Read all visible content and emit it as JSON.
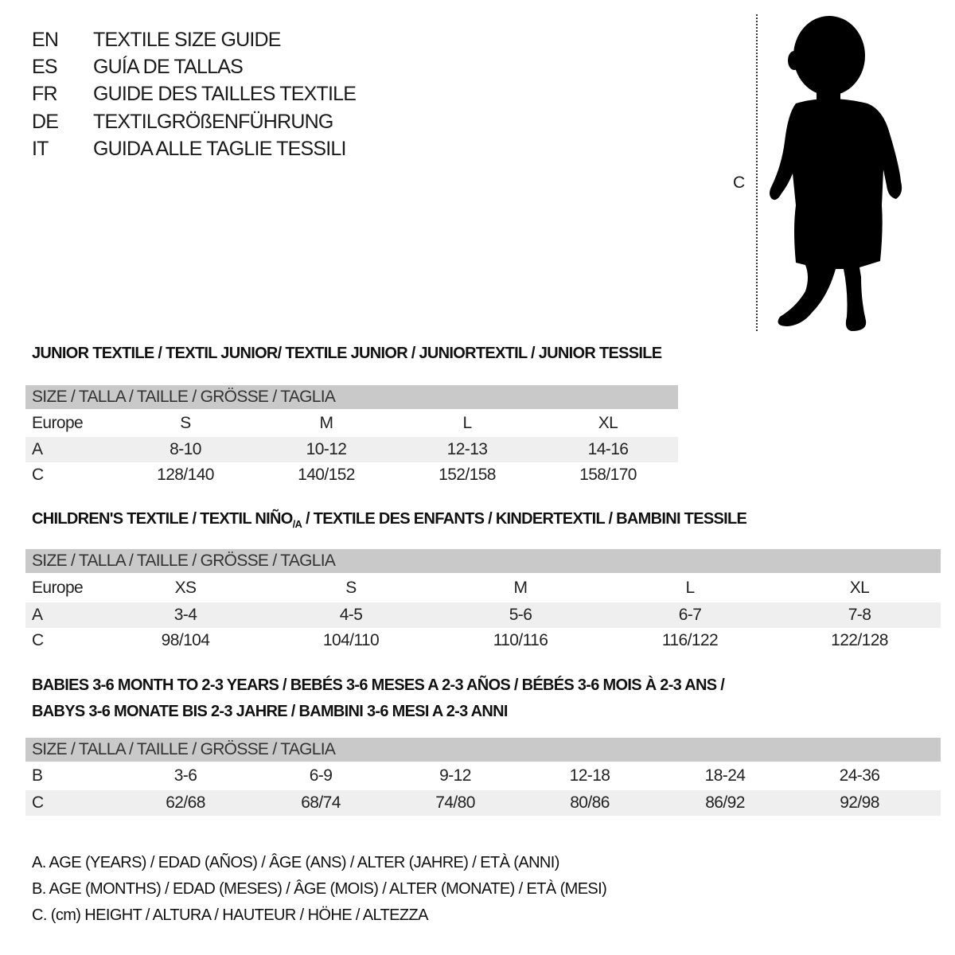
{
  "languages": [
    {
      "code": "EN",
      "text": "TEXTILE SIZE GUIDE"
    },
    {
      "code": "ES",
      "text": "GUÍA DE TALLAS"
    },
    {
      "code": "FR",
      "text": "GUIDE DES TAILLES TEXTILE"
    },
    {
      "code": "DE",
      "text": "TEXTILGRÖßENFÜHRUNG"
    },
    {
      "code": "IT",
      "text": "GUIDA ALLE TAGLIE TESSILI"
    }
  ],
  "figure": {
    "height_label": "C",
    "icon": "child-silhouette"
  },
  "size_header": "SIZE / TALLA / TAILLE / GRÖSSE / TAGLIA",
  "junior": {
    "title": "JUNIOR TEXTILE / TEXTIL JUNIOR/ TEXTILE JUNIOR / JUNIORTEXTIL / JUNIOR TESSILE",
    "rows": [
      {
        "label": "Europe",
        "values": [
          "S",
          "M",
          "L",
          "XL"
        ]
      },
      {
        "label": "A",
        "values": [
          "8-10",
          "10-12",
          "12-13",
          "14-16"
        ]
      },
      {
        "label": "C",
        "values": [
          "128/140",
          "140/152",
          "152/158",
          "158/170"
        ]
      }
    ]
  },
  "children": {
    "title_a": "CHILDREN'S TEXTILE / TEXTIL NIÑO",
    "title_sub": "/A",
    "title_b": " / TEXTILE DES ENFANTS / KINDERTEXTIL / BAMBINI TESSILE",
    "rows": [
      {
        "label": "Europe",
        "values": [
          "XS",
          "S",
          "M",
          "L",
          "XL"
        ]
      },
      {
        "label": "A",
        "values": [
          "3-4",
          "4-5",
          "5-6",
          "6-7",
          "7-8"
        ]
      },
      {
        "label": "C",
        "values": [
          "98/104",
          "104/110",
          "110/116",
          "116/122",
          "122/128"
        ]
      }
    ]
  },
  "babies": {
    "title_line1": "BABIES 3-6 MONTH TO 2-3 YEARS / BEBÉS 3-6 MESES A 2-3 AÑOS / BÉBÉS 3-6 MOIS À 2-3 ANS /",
    "title_line2": "BABYS 3-6 MONATE BIS 2-3 JAHRE / BAMBINI 3-6 MESI A 2-3 ANNI",
    "rows": [
      {
        "label": "B",
        "values": [
          "3-6",
          "6-9",
          "9-12",
          "12-18",
          "18-24",
          "24-36"
        ]
      },
      {
        "label": "C",
        "values": [
          "62/68",
          "68/74",
          "74/80",
          "80/86",
          "86/92",
          "92/98"
        ]
      }
    ]
  },
  "legend": [
    "A. AGE (YEARS) / EDAD (AÑOS) / ÂGE (ANS) / ALTER (JAHRE) / ETÀ (ANNI)",
    "B. AGE (MONTHS) / EDAD (MESES) / ÂGE (MOIS) / ALTER (MONATE) / ETÀ (MESI)",
    "C. (cm) HEIGHT / ALTURA / HAUTEUR / HÖHE / ALTEZZA"
  ]
}
